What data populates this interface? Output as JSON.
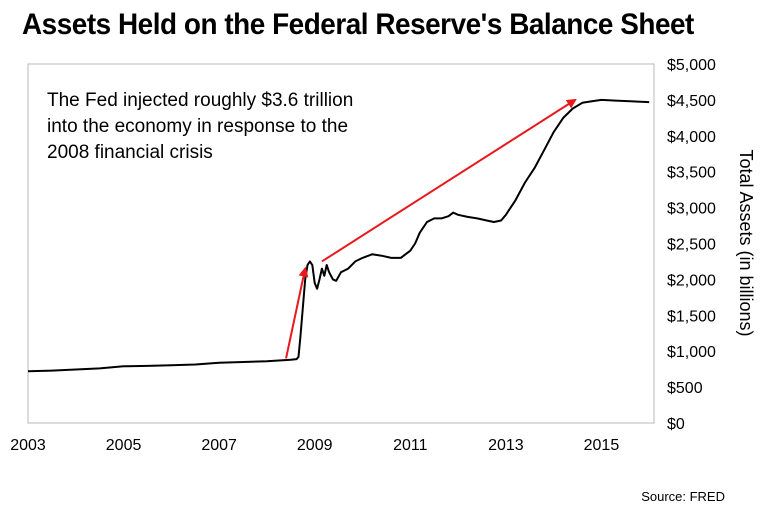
{
  "chart_data": {
    "type": "line",
    "title": "Assets Held on the Federal Reserve's Balance Sheet",
    "ylabel": "Total Assets (in billions)",
    "xlabel": "",
    "xlim": [
      2003,
      2016.1
    ],
    "ylim": [
      0,
      5000
    ],
    "x_ticks": [
      2003,
      2005,
      2007,
      2009,
      2011,
      2013,
      2015
    ],
    "y_ticks": [
      0,
      500,
      1000,
      1500,
      2000,
      2500,
      3000,
      3500,
      4000,
      4500,
      5000
    ],
    "y_tick_labels": [
      "$0",
      "$500",
      "$1,000",
      "$1,500",
      "$2,000",
      "$2,500",
      "$3,000",
      "$3,500",
      "$4,000",
      "$4,500",
      "$5,000"
    ],
    "grid": false,
    "line_color": "#000000",
    "series": [
      {
        "x": [
          2003.0,
          2003.5,
          2004.0,
          2004.5,
          2005.0,
          2005.5,
          2006.0,
          2006.5,
          2007.0,
          2007.5,
          2008.0,
          2008.5,
          2008.62,
          2008.66,
          2008.7,
          2008.75,
          2008.8,
          2008.85,
          2008.9,
          2008.95,
          2009.0,
          2009.05,
          2009.1,
          2009.15,
          2009.2,
          2009.25,
          2009.3,
          2009.38,
          2009.45,
          2009.55,
          2009.7,
          2009.85,
          2010.0,
          2010.2,
          2010.4,
          2010.6,
          2010.8,
          2011.0,
          2011.1,
          2011.2,
          2011.35,
          2011.5,
          2011.65,
          2011.8,
          2011.9,
          2012.0,
          2012.2,
          2012.4,
          2012.6,
          2012.75,
          2012.9,
          2013.0,
          2013.2,
          2013.4,
          2013.6,
          2013.8,
          2014.0,
          2014.2,
          2014.4,
          2014.6,
          2014.8,
          2015.0,
          2015.3,
          2015.6,
          2016.0
        ],
        "y": [
          720,
          730,
          745,
          760,
          790,
          795,
          805,
          815,
          840,
          850,
          860,
          880,
          890,
          920,
          1200,
          1600,
          2000,
          2200,
          2250,
          2200,
          1950,
          1870,
          2000,
          2150,
          2050,
          2200,
          2100,
          2000,
          1980,
          2100,
          2150,
          2250,
          2300,
          2350,
          2330,
          2300,
          2300,
          2400,
          2500,
          2650,
          2800,
          2850,
          2850,
          2880,
          2930,
          2900,
          2870,
          2850,
          2820,
          2800,
          2820,
          2900,
          3100,
          3350,
          3550,
          3800,
          4050,
          4250,
          4380,
          4460,
          4480,
          4500,
          4490,
          4480,
          4470
        ]
      }
    ],
    "annotation": {
      "lines": [
        "The Fed injected roughly $3.6 trillion",
        "into the economy in response to the",
        "2008 financial crisis"
      ],
      "arrow_color": "#e8191d",
      "arrows": [
        {
          "from": [
            2008.4,
            900
          ],
          "to": [
            2008.8,
            2150
          ]
        },
        {
          "from": [
            2009.15,
            2250
          ],
          "to": [
            2014.45,
            4500
          ]
        }
      ]
    },
    "source": "Source: FRED"
  }
}
